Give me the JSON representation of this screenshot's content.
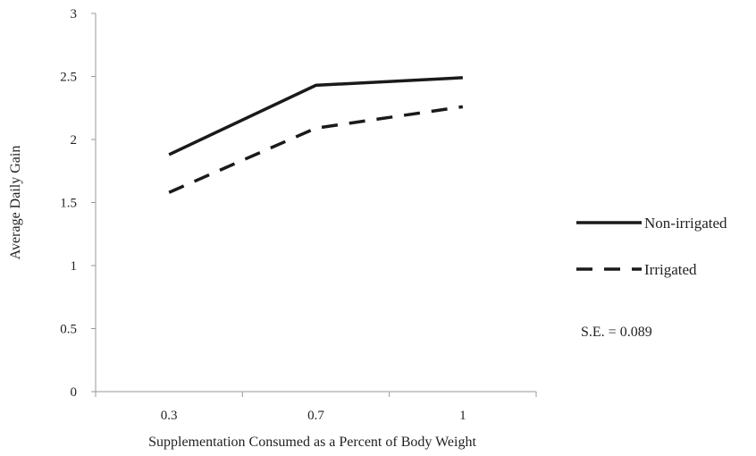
{
  "chart_data": {
    "type": "line",
    "categories": [
      "0.3",
      "0.7",
      "1"
    ],
    "series": [
      {
        "name": "Non-irrigated",
        "values": [
          1.88,
          2.43,
          2.49
        ],
        "style": "solid",
        "color": "#1a1a1a"
      },
      {
        "name": "Irrigated",
        "values": [
          1.58,
          2.09,
          2.26
        ],
        "style": "dashed",
        "color": "#1a1a1a"
      }
    ],
    "xlabel": "Supplementation Consumed as a Percent of Body Weight",
    "ylabel": "Average Daily Gain",
    "ylim": [
      0,
      3
    ],
    "yticks": [
      "0",
      "0.5",
      "1",
      "1.5",
      "2",
      "2.5",
      "3"
    ],
    "grid": false,
    "legend_position": "right",
    "annotation": "S.E. = 0.089",
    "axis_color": "#999999"
  }
}
